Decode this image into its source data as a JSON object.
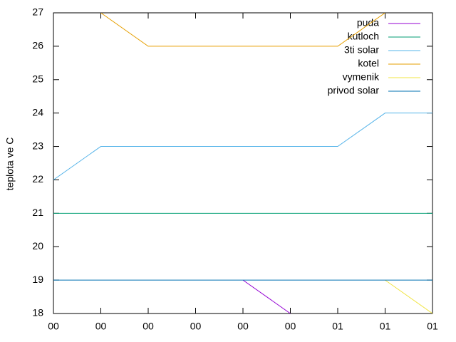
{
  "chart_data": {
    "type": "line",
    "ylabel": "teplota ve C",
    "xlim": [
      0,
      8
    ],
    "xticks": [
      {
        "value": 0,
        "label": "00"
      },
      {
        "value": 1,
        "label": "00"
      },
      {
        "value": 2,
        "label": "00"
      },
      {
        "value": 3,
        "label": "00"
      },
      {
        "value": 4,
        "label": "00"
      },
      {
        "value": 5,
        "label": "00"
      },
      {
        "value": 6,
        "label": "01"
      },
      {
        "value": 7,
        "label": "01"
      },
      {
        "value": 8,
        "label": "01"
      }
    ],
    "ylim": [
      18,
      27
    ],
    "yticks": [
      18,
      19,
      20,
      21,
      22,
      23,
      24,
      25,
      26,
      27
    ],
    "legend": "top-right",
    "series": [
      {
        "name": "puda",
        "color": "#9400d3",
        "x": [
          4,
          5
        ],
        "values": [
          19,
          18
        ]
      },
      {
        "name": "kutloch",
        "color": "#009e73",
        "x": [
          0,
          8
        ],
        "values": [
          21,
          21
        ]
      },
      {
        "name": "3ti solar",
        "color": "#56b4e9",
        "x": [
          0,
          1,
          6,
          7,
          8
        ],
        "values": [
          22,
          23,
          23,
          24,
          24
        ]
      },
      {
        "name": "kotel",
        "color": "#e69f00",
        "x": [
          1,
          2,
          6,
          7
        ],
        "values": [
          27,
          26,
          26,
          27
        ]
      },
      {
        "name": "vymenik",
        "color": "#f0e442",
        "x": [
          7,
          8
        ],
        "values": [
          19,
          18
        ]
      },
      {
        "name": "privod solar",
        "color": "#0072b2",
        "x": [
          0,
          8
        ],
        "values": [
          19,
          19
        ]
      }
    ]
  }
}
